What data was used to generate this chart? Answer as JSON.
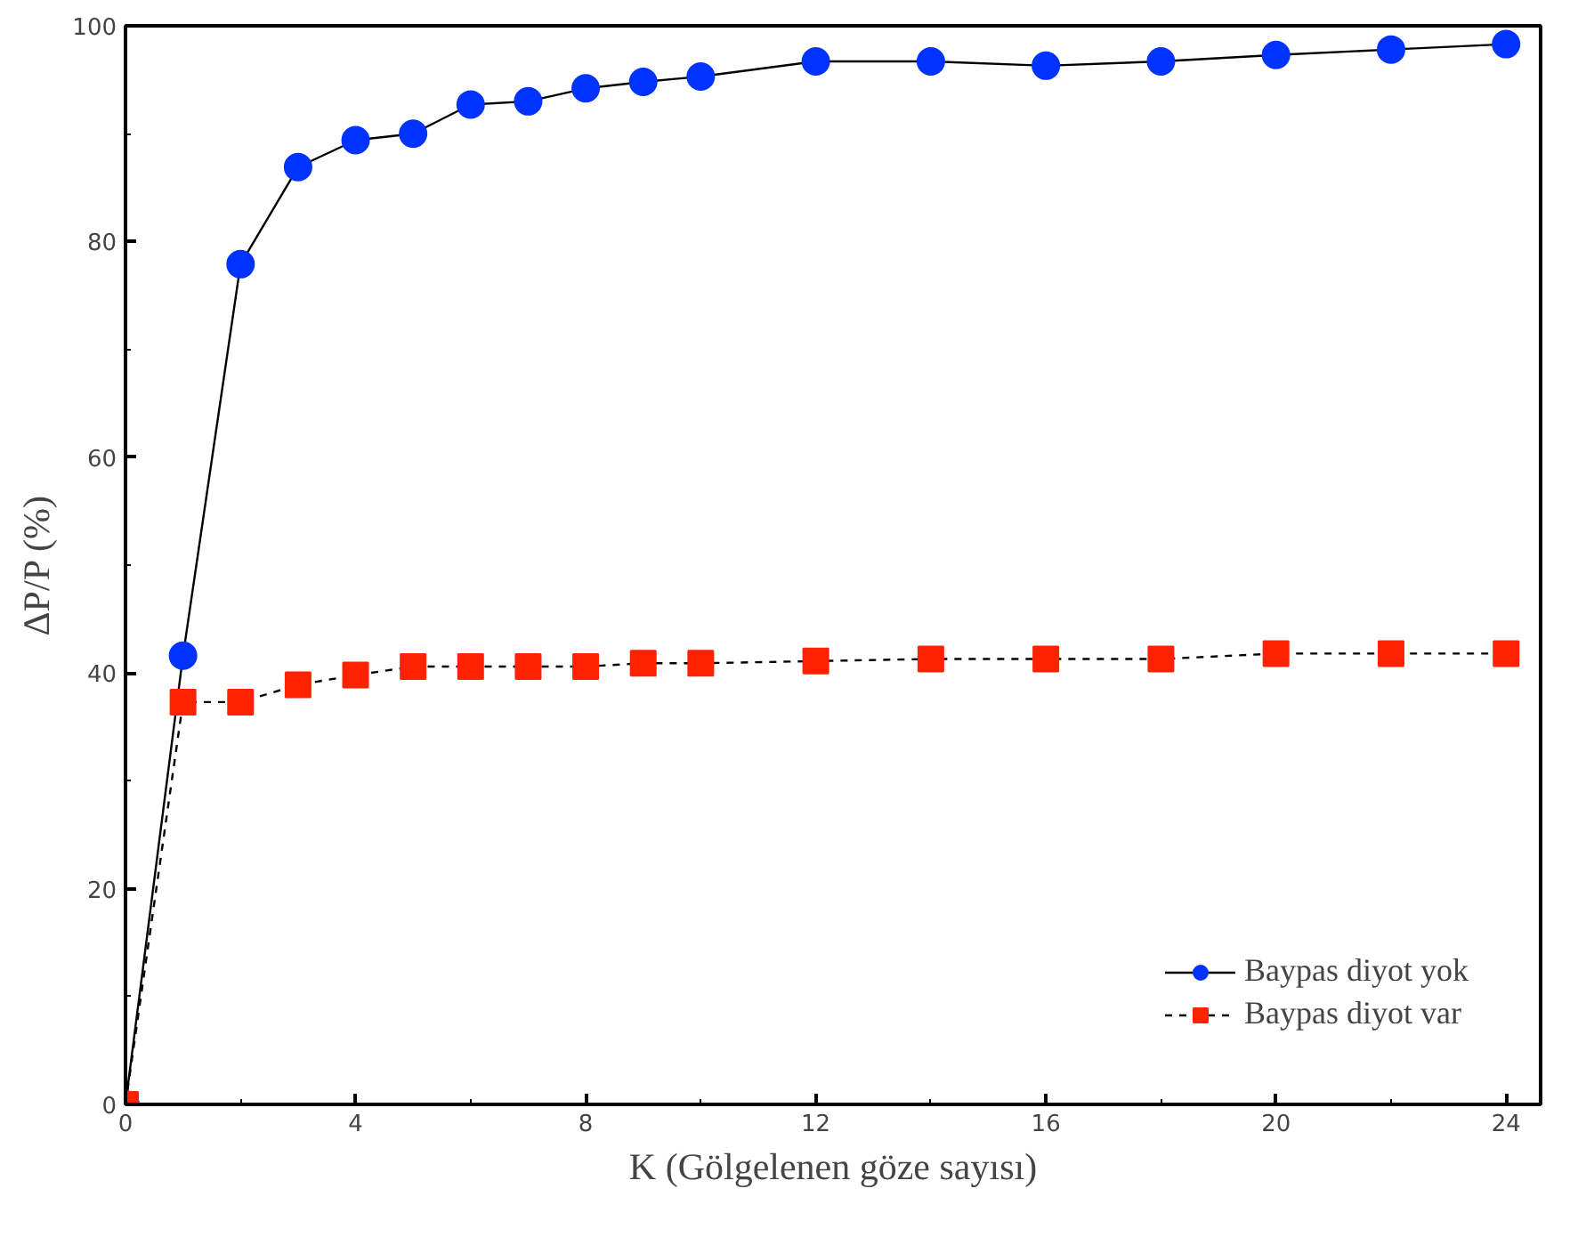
{
  "chart_data": {
    "type": "line",
    "xlabel": "K (Gölgelenen göze sayısı)",
    "ylabel": "ΔP/P (%)",
    "xlim": [
      0,
      24.6
    ],
    "ylim": [
      0,
      100
    ],
    "xticks": [
      0,
      4,
      8,
      12,
      16,
      20,
      24
    ],
    "yticks": [
      0,
      20,
      40,
      60,
      80,
      100
    ],
    "x": [
      0,
      1,
      2,
      3,
      4,
      5,
      6,
      7,
      8,
      9,
      10,
      12,
      14,
      16,
      18,
      20,
      22,
      24
    ],
    "grid": false,
    "legend": "bottom right",
    "series": [
      {
        "name": "Baypas diyot yok",
        "color": "#0033ff",
        "marker": "circle",
        "line_style": "solid",
        "values": [
          0,
          41.6,
          77.9,
          86.9,
          89.4,
          90.0,
          92.7,
          93.0,
          94.2,
          94.8,
          95.3,
          96.7,
          96.7,
          96.3,
          96.7,
          97.3,
          97.8,
          98.3
        ]
      },
      {
        "name": "Baypas diyot var",
        "color": "#ff2200",
        "marker": "square",
        "line_style": "dashed",
        "values": [
          0,
          37.3,
          37.3,
          38.9,
          39.8,
          40.6,
          40.6,
          40.6,
          40.6,
          40.9,
          40.9,
          41.1,
          41.3,
          41.3,
          41.3,
          41.8,
          41.8,
          41.8
        ]
      }
    ]
  }
}
